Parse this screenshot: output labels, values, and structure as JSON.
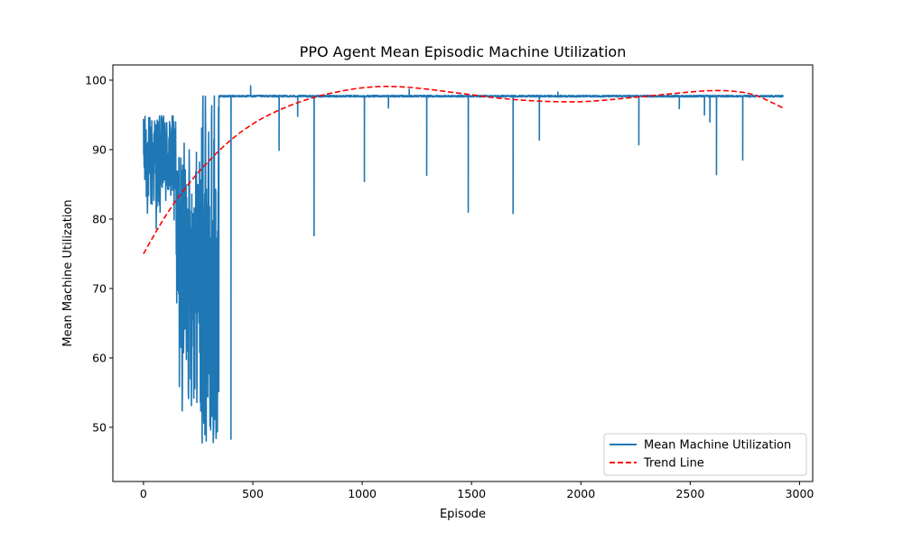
{
  "chart_data": {
    "type": "line",
    "title": "PPO Agent Mean Episodic Machine Utilization",
    "xlabel": "Episode",
    "ylabel": "Mean Machine Utilization",
    "xlim": [
      -140,
      3060
    ],
    "ylim": [
      42.2,
      102.2
    ],
    "xticks": [
      0,
      500,
      1000,
      1500,
      2000,
      2500,
      3000
    ],
    "yticks": [
      50,
      60,
      70,
      80,
      90,
      100
    ],
    "grid": false,
    "legend_position": "lower right",
    "series": [
      {
        "name": "Mean Machine Utilization",
        "color": "#1f77b4",
        "style": "solid",
        "baseline": 97.7,
        "x_range": [
          0,
          2925
        ],
        "early_segments": [
          {
            "x_range": [
              0,
              150
            ],
            "min": 69.0,
            "max": 95.0
          },
          {
            "x_range": [
              150,
              260
            ],
            "min": 45.0,
            "max": 91.0
          },
          {
            "x_range": [
              260,
              345
            ],
            "min": 47.7,
            "max": 98.0
          }
        ],
        "spikes": [
          {
            "x": 400,
            "y": 48.3
          },
          {
            "x": 490,
            "y": 99.2
          },
          {
            "x": 620,
            "y": 89.9
          },
          {
            "x": 705,
            "y": 94.8
          },
          {
            "x": 780,
            "y": 77.6
          },
          {
            "x": 1010,
            "y": 85.4
          },
          {
            "x": 1120,
            "y": 96.0
          },
          {
            "x": 1215,
            "y": 98.7
          },
          {
            "x": 1295,
            "y": 86.3
          },
          {
            "x": 1485,
            "y": 81.0
          },
          {
            "x": 1690,
            "y": 80.8
          },
          {
            "x": 1810,
            "y": 91.4
          },
          {
            "x": 1895,
            "y": 98.3
          },
          {
            "x": 2265,
            "y": 90.7
          },
          {
            "x": 2450,
            "y": 95.9
          },
          {
            "x": 2565,
            "y": 95.0
          },
          {
            "x": 2590,
            "y": 94.0
          },
          {
            "x": 2620,
            "y": 86.4
          },
          {
            "x": 2740,
            "y": 88.5
          }
        ]
      },
      {
        "name": "Trend Line",
        "color": "#ff0000",
        "style": "dashed",
        "x": [
          0,
          100,
          200,
          300,
          400,
          500,
          600,
          700,
          800,
          900,
          1000,
          1100,
          1200,
          1300,
          1400,
          1500,
          1600,
          1700,
          1800,
          1900,
          2000,
          2100,
          2200,
          2300,
          2400,
          2500,
          2600,
          2700,
          2800,
          2925
        ],
        "y": [
          75.0,
          80.4,
          84.8,
          88.4,
          91.4,
          93.7,
          95.4,
          96.7,
          97.7,
          98.4,
          98.9,
          99.1,
          99.0,
          98.7,
          98.3,
          97.9,
          97.5,
          97.2,
          97.0,
          96.9,
          96.9,
          97.1,
          97.4,
          97.7,
          98.0,
          98.3,
          98.5,
          98.4,
          97.8,
          96.0
        ]
      }
    ]
  }
}
